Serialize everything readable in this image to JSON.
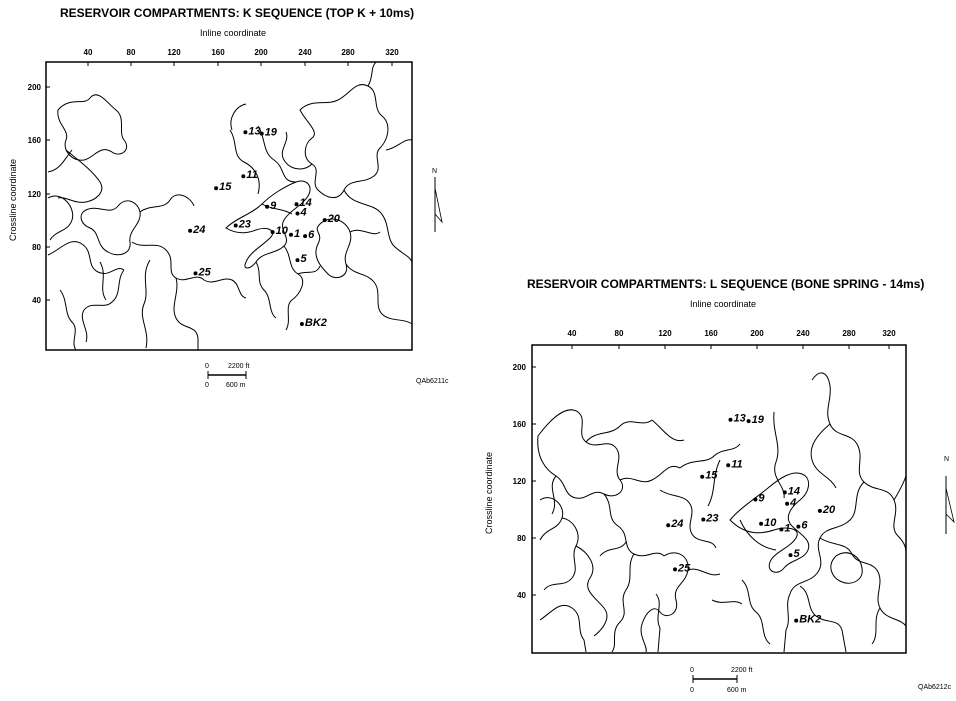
{
  "maps": [
    {
      "title": "RESERVOIR COMPARTMENTS: K SEQUENCE (TOP K + 10ms)",
      "inline_label": "Inline coordinate",
      "crossline_label": "Crossline coordinate",
      "inline_ticks": [
        "40",
        "80",
        "120",
        "160",
        "200",
        "240",
        "280",
        "320"
      ],
      "crossline_ticks": [
        "200",
        "160",
        "120",
        "80",
        "40"
      ],
      "scale_ft_0": "0",
      "scale_ft": "2200 ft",
      "scale_m_0": "0",
      "scale_m": "600 m",
      "figure_code": "QAb6211c",
      "north": "N",
      "wells": [
        {
          "label": "13",
          "inline": 185,
          "crossline": 166
        },
        {
          "label": "19",
          "inline": 200,
          "crossline": 165
        },
        {
          "label": "11",
          "inline": 183,
          "crossline": 133
        },
        {
          "label": "15",
          "inline": 158,
          "crossline": 124
        },
        {
          "label": "9",
          "inline": 205,
          "crossline": 110
        },
        {
          "label": "14",
          "inline": 232,
          "crossline": 112
        },
        {
          "label": "4",
          "inline": 233,
          "crossline": 105
        },
        {
          "label": "20",
          "inline": 258,
          "crossline": 100
        },
        {
          "label": "23",
          "inline": 176,
          "crossline": 96
        },
        {
          "label": "10",
          "inline": 210,
          "crossline": 91
        },
        {
          "label": "1",
          "inline": 227,
          "crossline": 89
        },
        {
          "label": "6",
          "inline": 240,
          "crossline": 88
        },
        {
          "label": "24",
          "inline": 134,
          "crossline": 92
        },
        {
          "label": "5",
          "inline": 233,
          "crossline": 70
        },
        {
          "label": "25",
          "inline": 139,
          "crossline": 60
        },
        {
          "label": "BK2",
          "inline": 237,
          "crossline": 22
        }
      ]
    },
    {
      "title": "RESERVOIR COMPARTMENTS: L SEQUENCE (BONE SPRING - 14ms)",
      "inline_label": "Inline coordinate",
      "crossline_label": "Crossline coordinate",
      "inline_ticks": [
        "40",
        "80",
        "120",
        "160",
        "200",
        "240",
        "280",
        "320"
      ],
      "crossline_ticks": [
        "200",
        "160",
        "120",
        "80",
        "40"
      ],
      "scale_ft_0": "0",
      "scale_ft": "2200 ft",
      "scale_m_0": "0",
      "scale_m": "600 m",
      "figure_code": "QAb6212c",
      "north": "N",
      "wells": [
        {
          "label": "13",
          "inline": 180,
          "crossline": 163
        },
        {
          "label": "19",
          "inline": 196,
          "crossline": 162
        },
        {
          "label": "11",
          "inline": 178,
          "crossline": 131
        },
        {
          "label": "15",
          "inline": 155,
          "crossline": 123
        },
        {
          "label": "9",
          "inline": 202,
          "crossline": 107
        },
        {
          "label": "14",
          "inline": 228,
          "crossline": 112
        },
        {
          "label": "4",
          "inline": 230,
          "crossline": 104
        },
        {
          "label": "20",
          "inline": 259,
          "crossline": 99
        },
        {
          "label": "23",
          "inline": 156,
          "crossline": 93
        },
        {
          "label": "10",
          "inline": 207,
          "crossline": 90
        },
        {
          "label": "1",
          "inline": 225,
          "crossline": 86
        },
        {
          "label": "6",
          "inline": 240,
          "crossline": 88
        },
        {
          "label": "24",
          "inline": 125,
          "crossline": 89
        },
        {
          "label": "5",
          "inline": 233,
          "crossline": 68
        },
        {
          "label": "25",
          "inline": 131,
          "crossline": 58
        },
        {
          "label": "BK2",
          "inline": 238,
          "crossline": 22
        }
      ]
    }
  ]
}
